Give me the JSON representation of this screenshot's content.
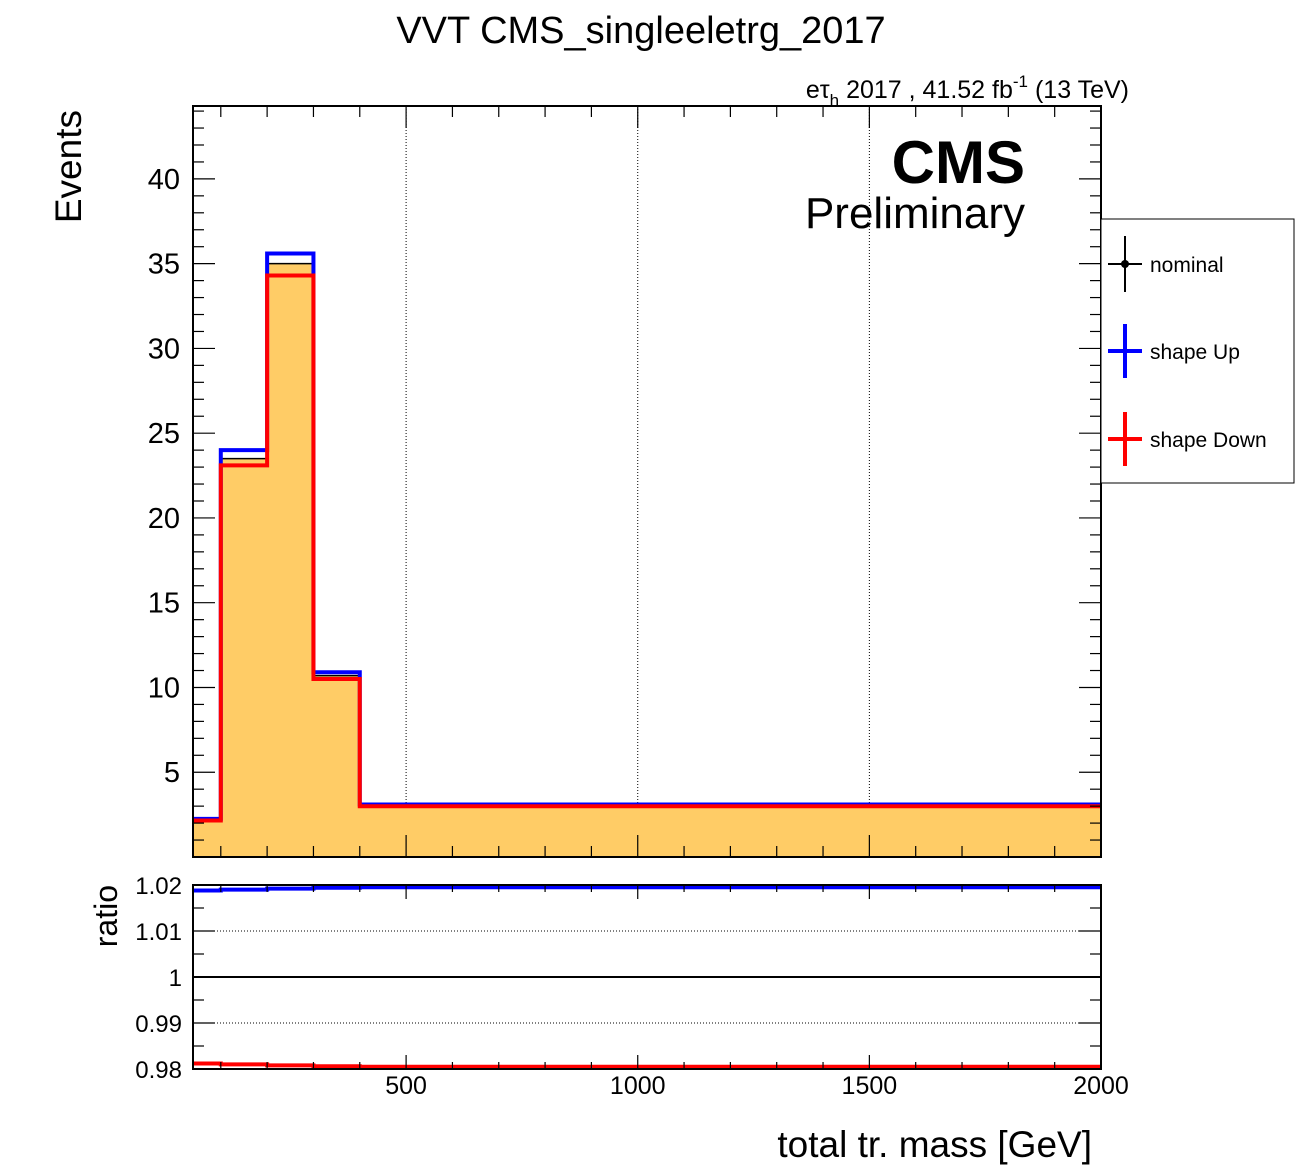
{
  "title": "VVT CMS_singleeletrg_2017",
  "lumi": {
    "channel_main": "eτ",
    "channel_sub": "h",
    "text": " 2017 , 41.52 fb",
    "exponent": "-1",
    "energy": " (13 TeV)"
  },
  "cms_label": "CMS",
  "cms_sublabel": "Preliminary",
  "colors": {
    "nominal": "#000000",
    "up": "#0000ff",
    "down": "#ff0000",
    "fill": "#ffcc66"
  },
  "legend": [
    {
      "label": "nominal",
      "color": "#000000"
    },
    {
      "label": "shape Up",
      "color": "#0000ff"
    },
    {
      "label": "shape Down",
      "color": "#ff0000"
    }
  ],
  "chart_data": [
    {
      "type": "histogram",
      "ylabel": "Events",
      "xlim": [
        40,
        2000
      ],
      "ylim": [
        0,
        44.3
      ],
      "yticks": [
        5,
        10,
        15,
        20,
        25,
        30,
        35,
        40
      ],
      "grid_x": [
        500,
        1000,
        1500
      ],
      "bin_edges": [
        40,
        100,
        200,
        300,
        400,
        2000
      ],
      "series": [
        {
          "name": "nominal",
          "values": [
            2.2,
            23.5,
            35.0,
            10.7,
            3.05
          ]
        },
        {
          "name": "shape Up",
          "values": [
            2.25,
            24.0,
            35.6,
            10.9,
            3.1
          ]
        },
        {
          "name": "shape Down",
          "values": [
            2.15,
            23.1,
            34.3,
            10.5,
            2.99
          ]
        }
      ]
    },
    {
      "type": "line",
      "ylabel": "ratio",
      "xlabel": "total tr. mass [GeV]",
      "xlim": [
        40,
        2000
      ],
      "ylim": [
        0.98,
        1.02
      ],
      "yticks": [
        0.98,
        0.99,
        1,
        1.01,
        1.02
      ],
      "ytick_labels": [
        "0.98",
        "0.99",
        "1",
        "1.01",
        "1.02"
      ],
      "xticks": [
        500,
        1000,
        1500,
        2000
      ],
      "xtick_labels": [
        "500",
        "1000",
        "1500",
        "2000"
      ],
      "bin_edges": [
        40,
        100,
        200,
        300,
        400,
        2000
      ],
      "series": [
        {
          "name": "shape Up",
          "values": [
            1.0188,
            1.019,
            1.0192,
            1.0194,
            1.0195
          ]
        },
        {
          "name": "shape Down",
          "values": [
            0.9812,
            0.981,
            0.9808,
            0.9806,
            0.9805
          ]
        }
      ]
    }
  ]
}
